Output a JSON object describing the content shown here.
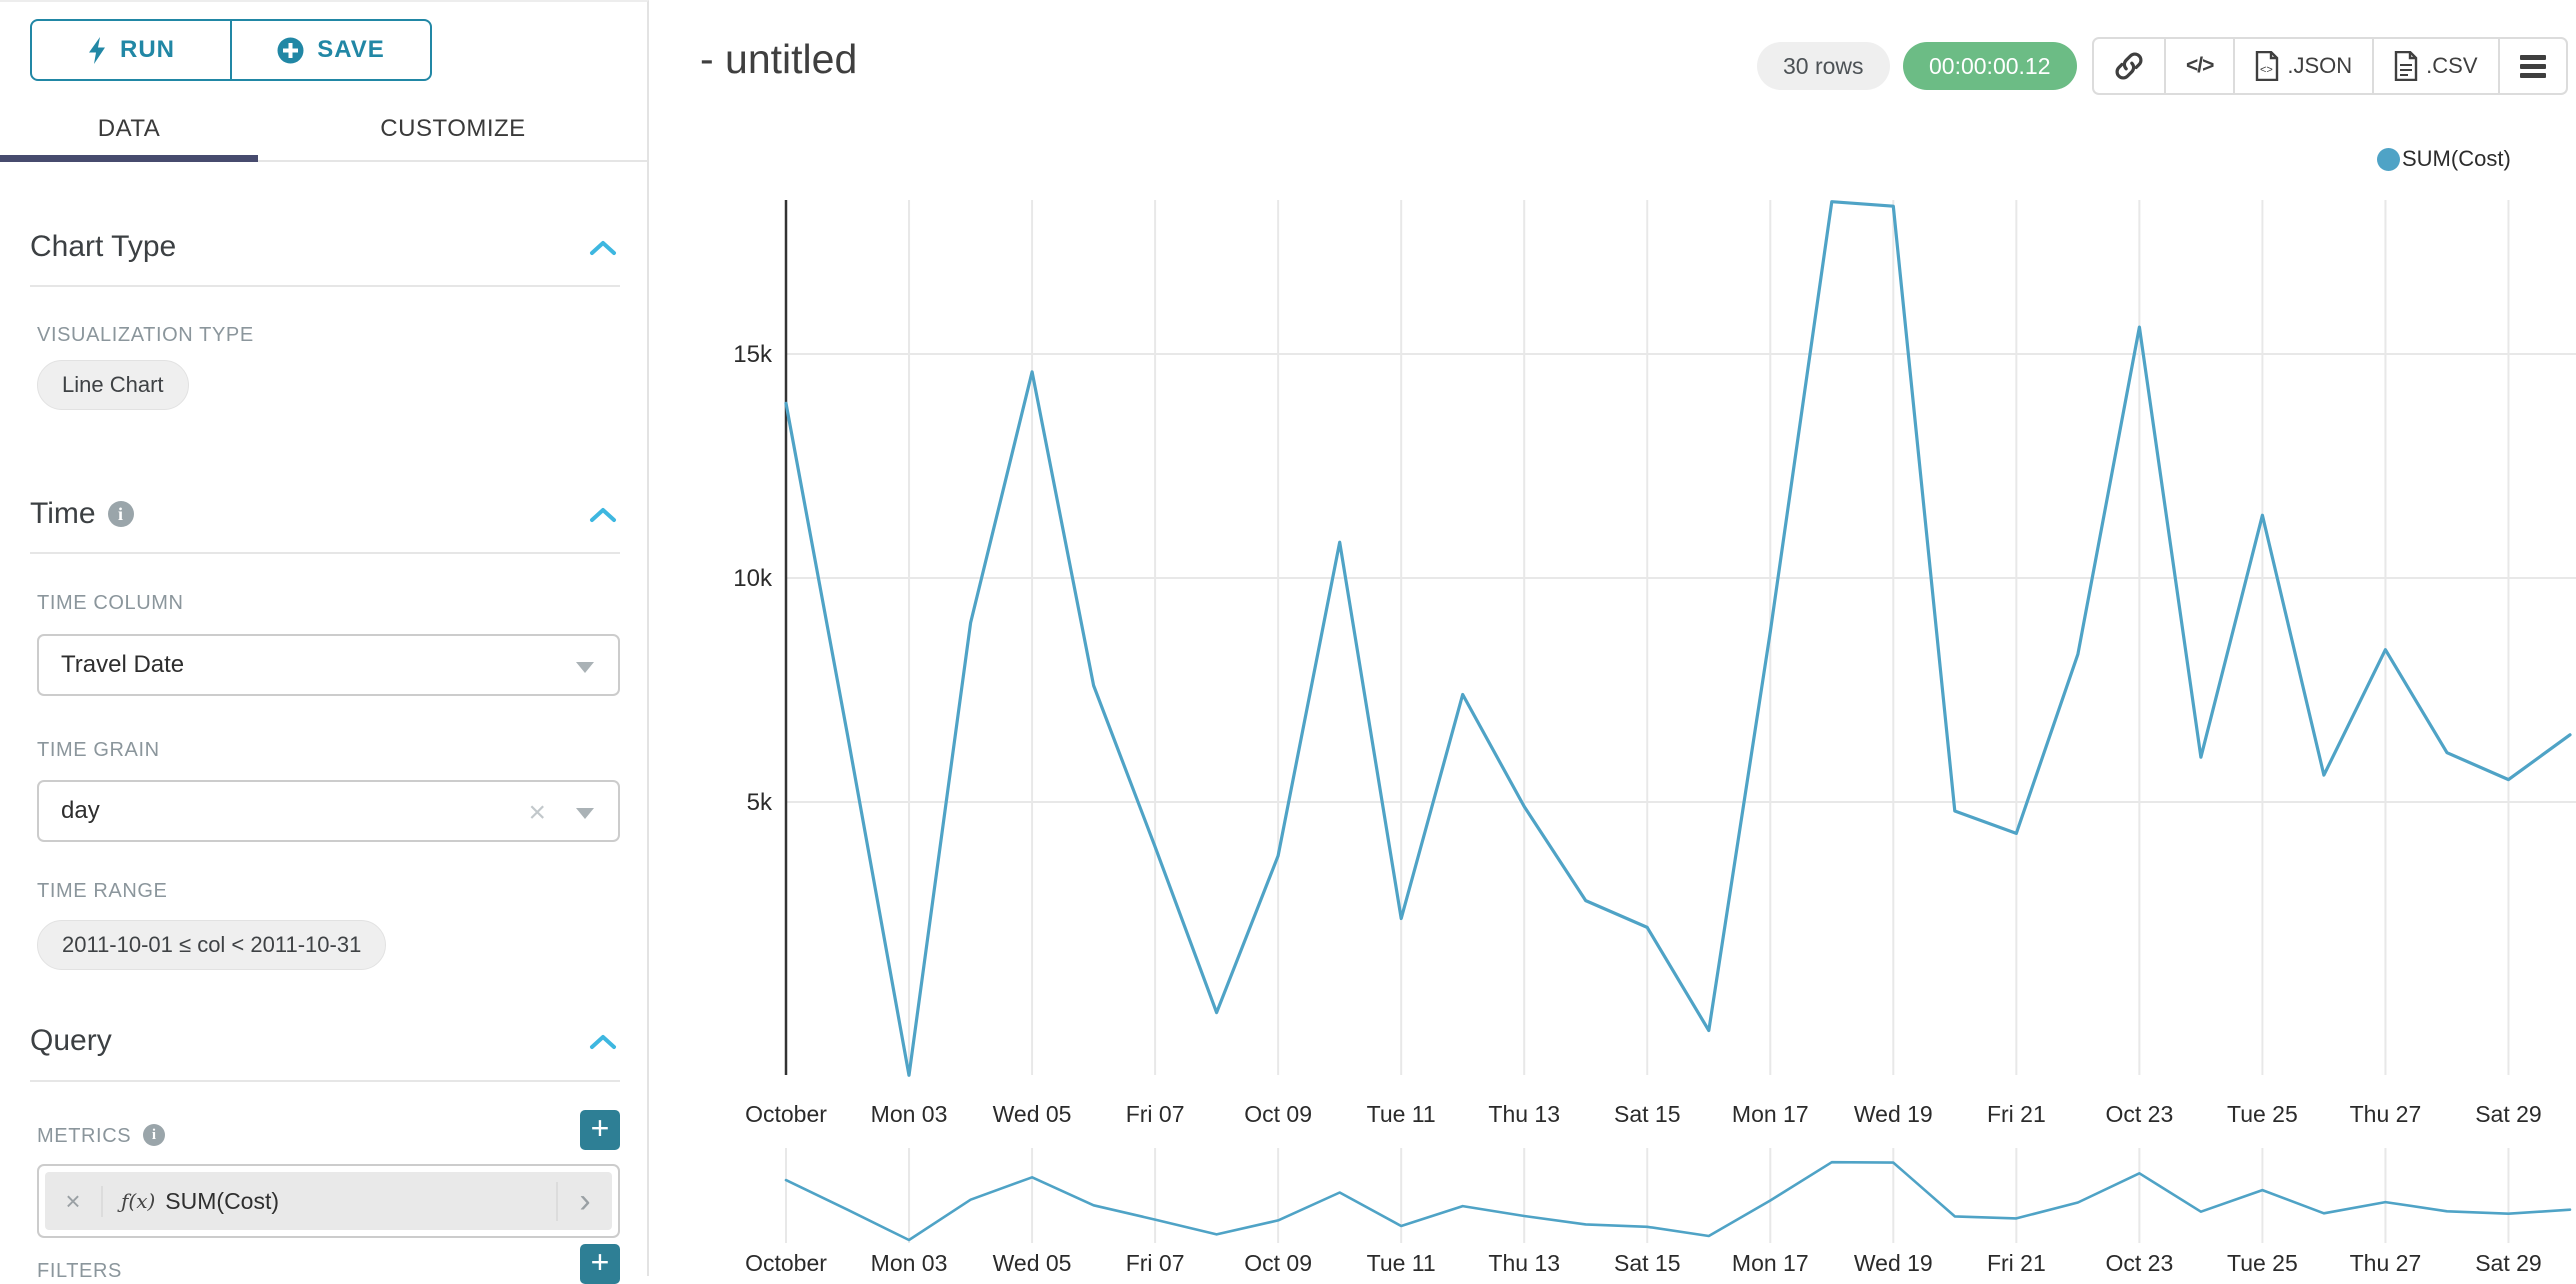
{
  "panel": {
    "run_label": "RUN",
    "save_label": "SAVE",
    "tabs": {
      "data": "DATA",
      "customize": "CUSTOMIZE"
    },
    "chart_type_section": {
      "title": "Chart Type",
      "viz_type_label": "VISUALIZATION TYPE",
      "viz_type_value": "Line Chart"
    },
    "time_section": {
      "title": "Time",
      "time_column_label": "TIME COLUMN",
      "time_column_value": "Travel Date",
      "time_grain_label": "TIME GRAIN",
      "time_grain_value": "day",
      "time_range_label": "TIME RANGE",
      "time_range_value": "2011-10-01 ≤ col < 2011-10-31"
    },
    "query_section": {
      "title": "Query",
      "metrics_label": "METRICS",
      "metric_fx": "ƒ(x)",
      "metric_value": "SUM(Cost)",
      "filters_label": "FILTERS"
    }
  },
  "header": {
    "title": "- untitled",
    "rows_badge": "30 rows",
    "timer_badge": "00:00:00.12",
    "export_json_label": ".JSON",
    "export_csv_label": ".CSV"
  },
  "legend": {
    "label": "SUM(Cost)"
  },
  "icons": {
    "run": "lightning-bolt-icon",
    "save": "plus-circle-icon",
    "sections": "chevron-up-icon",
    "info": "info-circle-icon",
    "share": "link-icon",
    "embed": "code-icon",
    "menu": "hamburger-icon",
    "export": "document-icon"
  },
  "colors": {
    "line": "#4FA3C6",
    "accent_teal": "#2187a5",
    "tab_indicator": "#474b6e",
    "green_badge": "#6cbc85",
    "chevron_blue": "#3eb7e0",
    "plus_button": "#2e7f95",
    "grid": "#e8e8e8",
    "axis": "#333333"
  },
  "chart_data": {
    "type": "line",
    "title": "- untitled",
    "xlabel": "",
    "ylabel": "",
    "x": [
      "2011-10-01",
      "2011-10-02",
      "2011-10-03",
      "2011-10-04",
      "2011-10-05",
      "2011-10-06",
      "2011-10-07",
      "2011-10-08",
      "2011-10-09",
      "2011-10-10",
      "2011-10-11",
      "2011-10-12",
      "2011-10-13",
      "2011-10-14",
      "2011-10-15",
      "2011-10-16",
      "2011-10-17",
      "2011-10-18",
      "2011-10-19",
      "2011-10-20",
      "2011-10-21",
      "2011-10-22",
      "2011-10-23",
      "2011-10-24",
      "2011-10-25",
      "2011-10-26",
      "2011-10-27",
      "2011-10-28",
      "2011-10-29",
      "2011-10-30"
    ],
    "series": [
      {
        "name": "SUM(Cost)",
        "values": [
          13900,
          6500,
          -1100,
          9000,
          14600,
          7600,
          4000,
          300,
          3800,
          10800,
          2400,
          7400,
          4900,
          2800,
          2200,
          -100,
          8800,
          18400,
          18300,
          4800,
          4300,
          8300,
          15600,
          6000,
          11400,
          5600,
          8400,
          6100,
          5500,
          6500
        ]
      }
    ],
    "x_tick_days": [
      1,
      3,
      5,
      7,
      9,
      11,
      13,
      15,
      17,
      19,
      21,
      23,
      25,
      27,
      29
    ],
    "x_tick_labels": [
      "October",
      "Mon 03",
      "Wed 05",
      "Fri 07",
      "Oct 09",
      "Tue 11",
      "Thu 13",
      "Sat 15",
      "Mon 17",
      "Wed 19",
      "Fri 21",
      "Oct 23",
      "Tue 25",
      "Thu 27",
      "Sat 29"
    ],
    "y_tick_labels": [
      "5k",
      "10k",
      "15k"
    ],
    "y_tick_values": [
      5000,
      10000,
      15000
    ],
    "ylim": [
      -1100,
      18440
    ],
    "grid": true,
    "legend_position": "top-right",
    "has_context_brush_chart": true
  }
}
